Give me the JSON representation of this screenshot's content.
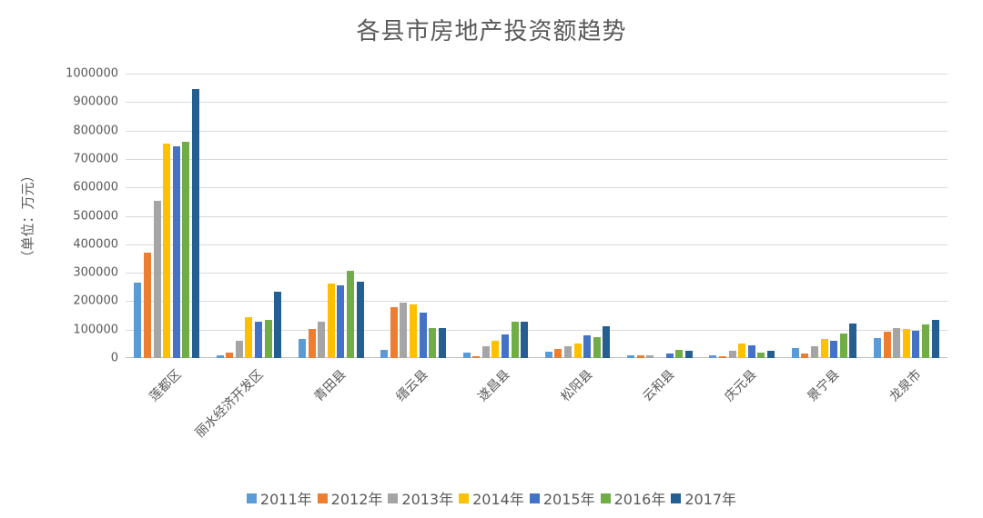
{
  "chart_data": {
    "type": "bar",
    "title": "各县市房地产投资额趋势",
    "xlabel": "",
    "ylabel": "（单位：万元）",
    "ylim": [
      0,
      1000000
    ],
    "yticks": [
      0,
      100000,
      200000,
      300000,
      400000,
      500000,
      600000,
      700000,
      800000,
      900000,
      1000000
    ],
    "grid": true,
    "legend_position": "bottom",
    "categories": [
      "莲都区",
      "丽水经济开发区",
      "青田县",
      "缙云县",
      "遂昌县",
      "松阳县",
      "云和县",
      "庆元县",
      "景宁县",
      "龙泉市"
    ],
    "series": [
      {
        "name": "2011年",
        "color": "#5B9BD5",
        "values": [
          265000,
          10000,
          67000,
          30000,
          20000,
          23000,
          10000,
          10000,
          35000,
          70000
        ]
      },
      {
        "name": "2012年",
        "color": "#ED7D31",
        "values": [
          371000,
          20000,
          103000,
          180000,
          5000,
          32000,
          10000,
          5000,
          15000,
          93000
        ]
      },
      {
        "name": "2013年",
        "color": "#A5A5A5",
        "values": [
          553000,
          62000,
          128000,
          195000,
          42000,
          40000,
          10000,
          25000,
          40000,
          107000
        ]
      },
      {
        "name": "2014年",
        "color": "#FFC000",
        "values": [
          754000,
          145000,
          262000,
          190000,
          62000,
          50000,
          0,
          50000,
          67000,
          102000
        ]
      },
      {
        "name": "2015年",
        "color": "#4472C4",
        "values": [
          744000,
          128000,
          257000,
          160000,
          83000,
          80000,
          15000,
          45000,
          62000,
          97000
        ]
      },
      {
        "name": "2016年",
        "color": "#70AD47",
        "values": [
          760000,
          135000,
          308000,
          107000,
          127000,
          75000,
          28000,
          18000,
          87000,
          118000
        ]
      },
      {
        "name": "2017年",
        "color": "#255E91",
        "values": [
          945000,
          232000,
          268000,
          107000,
          127000,
          112000,
          25000,
          25000,
          122000,
          133000
        ]
      }
    ]
  }
}
